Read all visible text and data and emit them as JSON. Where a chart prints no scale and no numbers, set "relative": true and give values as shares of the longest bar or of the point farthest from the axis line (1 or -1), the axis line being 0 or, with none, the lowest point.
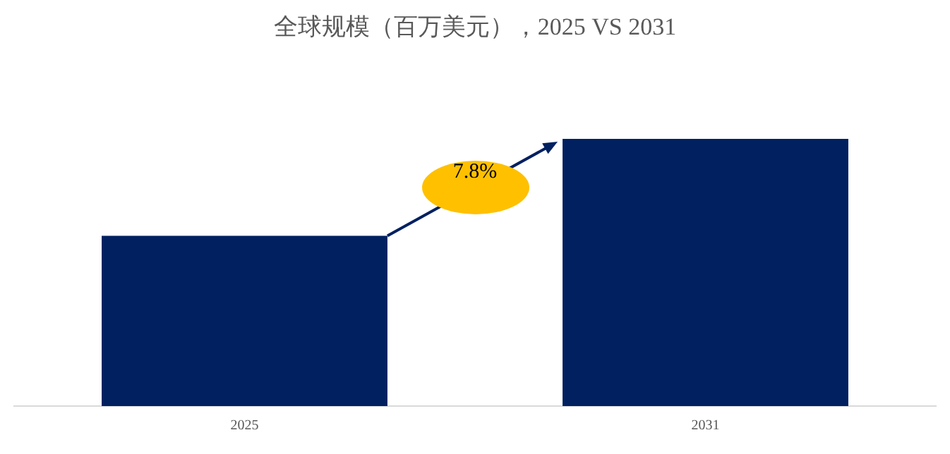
{
  "chart_data": {
    "type": "bar",
    "title": "全球规模（百万美元），2025 VS 2031",
    "categories": [
      "2025",
      "2031"
    ],
    "values": [
      0.637,
      1
    ],
    "color": "#002060",
    "relative": true,
    "annotations": [
      "7.8%"
    ]
  }
}
